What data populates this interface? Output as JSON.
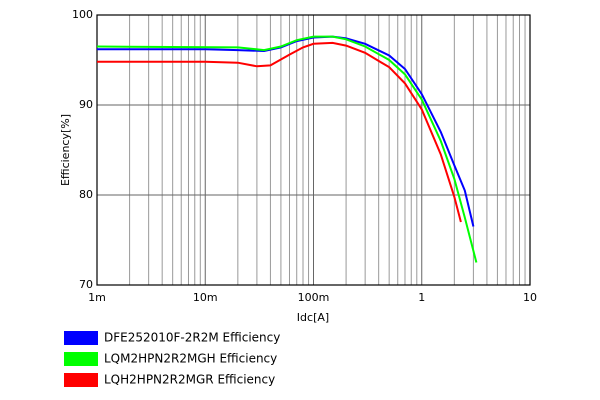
{
  "chart_data": {
    "type": "line",
    "xlabel": "Idc[A]",
    "ylabel": "Efficiency[%]",
    "xscale": "log",
    "xlim": [
      0.001,
      10
    ],
    "ylim": [
      70,
      100
    ],
    "xticks": [
      {
        "value": 0.001,
        "label": "1m"
      },
      {
        "value": 0.01,
        "label": "10m"
      },
      {
        "value": 0.1,
        "label": "100m"
      },
      1,
      10
    ],
    "xminorticks": [
      0.002,
      0.003,
      0.004,
      0.005,
      0.006,
      0.007,
      0.008,
      0.009,
      0.02,
      0.03,
      0.04,
      0.05,
      0.06,
      0.07,
      0.08,
      0.09,
      0.2,
      0.3,
      0.4,
      0.5,
      0.6,
      0.7,
      0.8,
      0.9,
      2,
      3,
      4,
      5,
      6,
      7,
      8,
      9
    ],
    "yticks": [
      70,
      80,
      90,
      100
    ],
    "grid": true,
    "series": [
      {
        "name": "DFE252010F-2R2M Efficiency",
        "color": "#0000ff",
        "x": [
          0.001,
          0.01,
          0.02,
          0.035,
          0.05,
          0.07,
          0.1,
          0.15,
          0.2,
          0.3,
          0.5,
          0.7,
          1,
          1.5,
          2,
          2.5,
          3
        ],
        "values": [
          96.2,
          96.2,
          96.1,
          96.0,
          96.4,
          97.1,
          97.5,
          97.6,
          97.4,
          96.8,
          95.5,
          94.0,
          91.2,
          87.0,
          83.3,
          80.5,
          76.5
        ]
      },
      {
        "name": "LQM2HPN2R2MGH Efficiency",
        "color": "#00ff00",
        "x": [
          0.001,
          0.02,
          0.035,
          0.05,
          0.07,
          0.1,
          0.15,
          0.2,
          0.3,
          0.5,
          0.7,
          1,
          1.5,
          2,
          2.5,
          3.2
        ],
        "values": [
          96.5,
          96.4,
          96.1,
          96.5,
          97.2,
          97.6,
          97.6,
          97.3,
          96.5,
          95.0,
          93.4,
          90.6,
          86.0,
          81.8,
          77.5,
          72.5
        ]
      },
      {
        "name": "LQH2HPN2R2MGR Efficiency",
        "color": "#ff0000",
        "x": [
          0.001,
          0.01,
          0.02,
          0.03,
          0.04,
          0.06,
          0.08,
          0.1,
          0.15,
          0.2,
          0.3,
          0.5,
          0.7,
          1,
          1.5,
          2,
          2.3
        ],
        "values": [
          94.8,
          94.8,
          94.7,
          94.3,
          94.4,
          95.6,
          96.4,
          96.8,
          96.9,
          96.6,
          95.8,
          94.2,
          92.4,
          89.5,
          84.5,
          79.8,
          77.0
        ]
      }
    ]
  }
}
